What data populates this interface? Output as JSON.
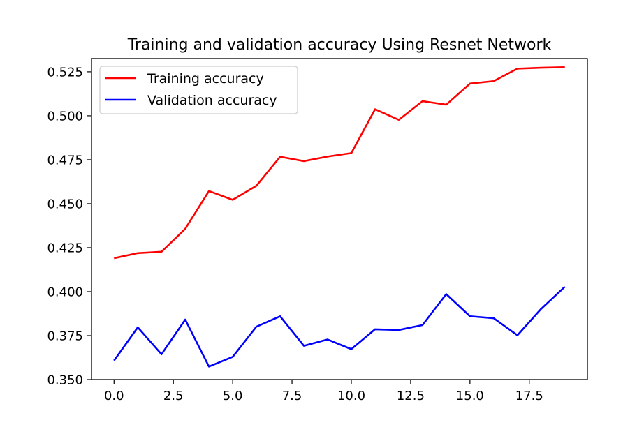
{
  "chart_data": {
    "type": "line",
    "title": "Training and validation accuracy Using Resnet Network",
    "xlabel": "",
    "ylabel": "",
    "x": [
      0,
      1,
      2,
      3,
      4,
      5,
      6,
      7,
      8,
      9,
      10,
      11,
      12,
      13,
      14,
      15,
      16,
      17,
      18,
      19
    ],
    "xlim": [
      -0.95,
      19.95
    ],
    "ylim": [
      0.35,
      0.5325
    ],
    "xticks": [
      0.0,
      2.5,
      5.0,
      7.5,
      10.0,
      12.5,
      15.0,
      17.5
    ],
    "xtick_labels": [
      "0.0",
      "2.5",
      "5.0",
      "7.5",
      "10.0",
      "12.5",
      "15.0",
      "17.5"
    ],
    "yticks": [
      0.35,
      0.375,
      0.4,
      0.425,
      0.45,
      0.475,
      0.5,
      0.525
    ],
    "ytick_labels": [
      "0.350",
      "0.375",
      "0.400",
      "0.425",
      "0.450",
      "0.475",
      "0.500",
      "0.525"
    ],
    "grid": false,
    "legend_position": "upper-left",
    "series": [
      {
        "name": "Training accuracy",
        "color": "#ff0000",
        "values": [
          0.419,
          0.4219,
          0.4227,
          0.4357,
          0.4572,
          0.4522,
          0.4602,
          0.4767,
          0.4742,
          0.4768,
          0.4788,
          0.5037,
          0.4977,
          0.5083,
          0.5063,
          0.5183,
          0.5197,
          0.5268,
          0.5273,
          0.5276
        ]
      },
      {
        "name": "Validation accuracy",
        "color": "#0000ff",
        "values": [
          0.3608,
          0.3797,
          0.3644,
          0.3841,
          0.3574,
          0.3629,
          0.3801,
          0.386,
          0.3692,
          0.3728,
          0.3673,
          0.3786,
          0.3782,
          0.381,
          0.3986,
          0.386,
          0.3849,
          0.3752,
          0.3902,
          0.4028
        ]
      }
    ]
  }
}
